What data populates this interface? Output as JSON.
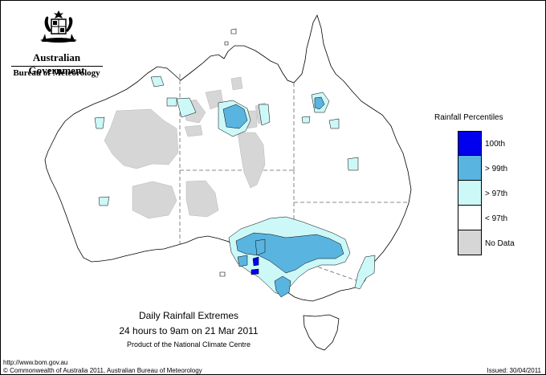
{
  "header": {
    "government": "Australian Government",
    "bureau": "Bureau of Meteorology",
    "logo_icon": "coat-of-arms-icon"
  },
  "legend": {
    "title": "Rainfall Percentiles",
    "items": [
      {
        "label": "100th",
        "color": "#0000ee"
      },
      {
        "label": "> 99th",
        "color": "#5ab4e0"
      },
      {
        "label": "> 97th",
        "color": "#ccf8f8"
      },
      {
        "label": "< 97th",
        "color": "#ffffff"
      },
      {
        "label": "No Data",
        "color": "#d6d6d6"
      }
    ]
  },
  "caption": {
    "line1": "Daily Rainfall Extremes",
    "line2": "24 hours to 9am on 21 Mar 2011",
    "line3": "Product of the National Climate Centre"
  },
  "footer": {
    "url": "http://www.bom.gov.au",
    "copyright": "© Commonwealth of Australia 2011, Australian Bureau of Meteorology",
    "issued": "Issued: 30/04/2011"
  },
  "colors": {
    "coastline": "#000000",
    "state_border": "#666666"
  }
}
